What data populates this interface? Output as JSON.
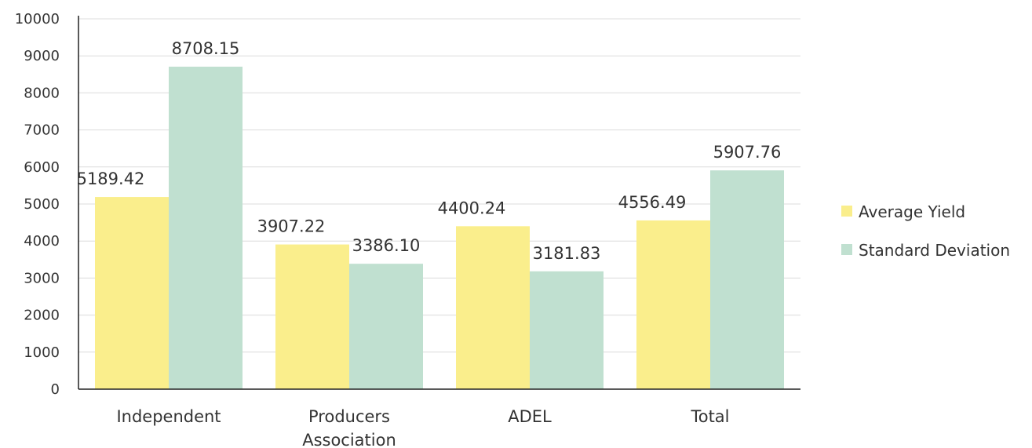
{
  "chart_data": {
    "type": "bar",
    "categories": [
      [
        "Independent"
      ],
      [
        "Producers",
        "Association"
      ],
      [
        "ADEL"
      ],
      [
        "Total"
      ]
    ],
    "series": [
      {
        "name": "Average Yield",
        "color": "#faee8c",
        "values": [
          5189.42,
          3907.22,
          4400.24,
          4556.49
        ],
        "labels": [
          "5189.42",
          "3907.22",
          "4400.24",
          "4556.49"
        ]
      },
      {
        "name": "Standard Deviation",
        "color": "#c0e0d0",
        "values": [
          8708.15,
          3386.1,
          3181.83,
          5907.76
        ],
        "labels": [
          "8708.15",
          "3386.10",
          "3181.83",
          "5907.76"
        ]
      }
    ],
    "ylim": [
      0,
      10000
    ],
    "yticks": [
      "0",
      "1000",
      "2000",
      "3000",
      "4000",
      "5000",
      "6000",
      "7000",
      "8000",
      "9000",
      "10000"
    ],
    "grid": true,
    "legend_position": "right"
  }
}
